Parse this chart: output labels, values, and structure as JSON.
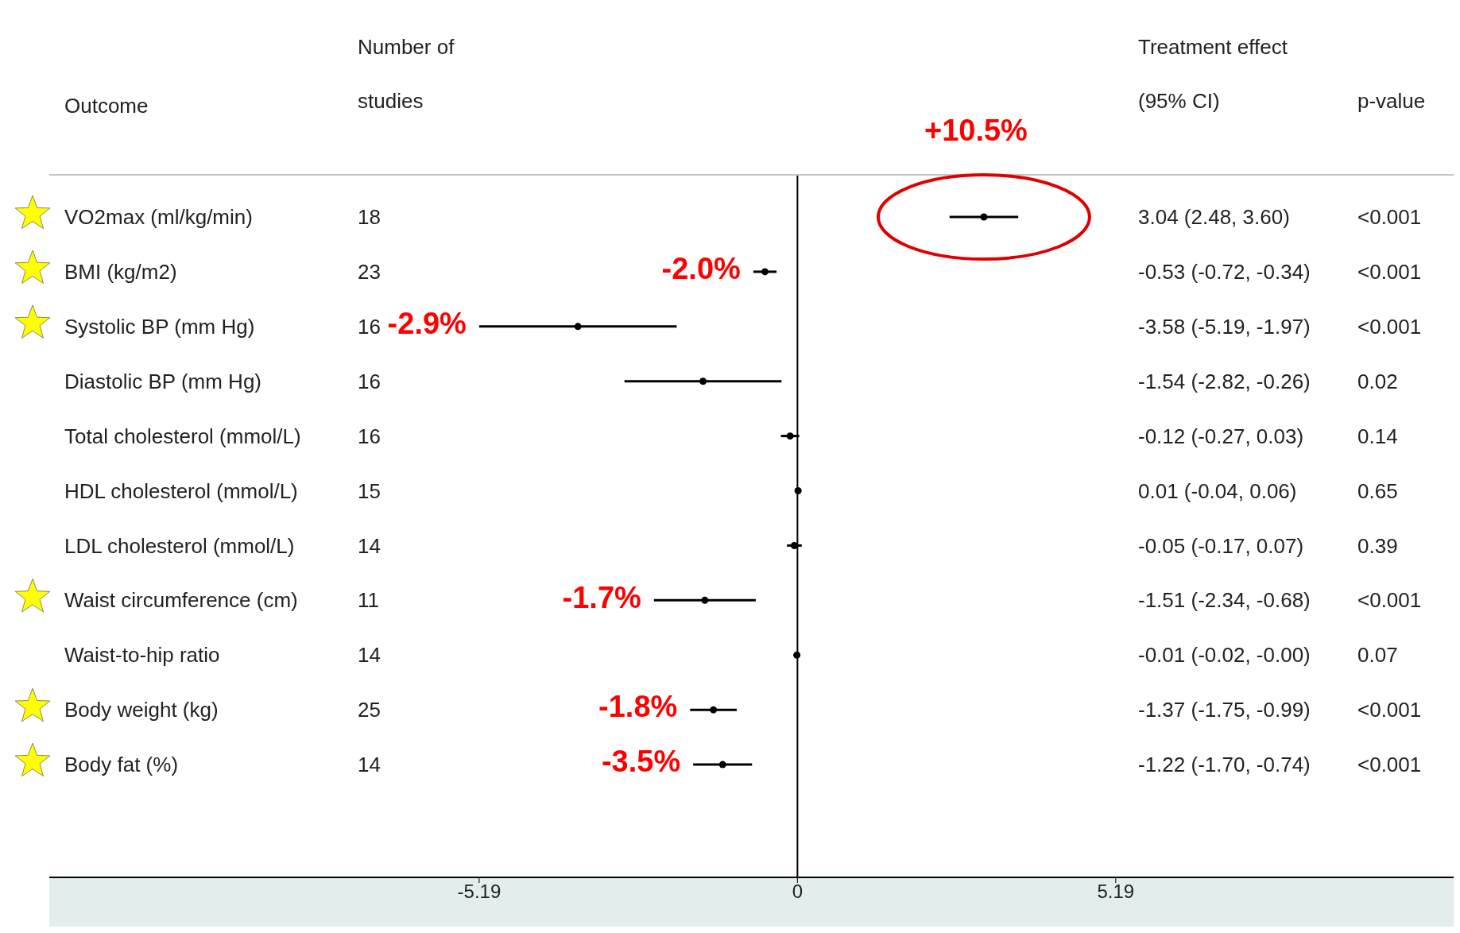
{
  "chart_data": {
    "type": "scatter",
    "orientation": "horizontal",
    "ylabel": "Outcome",
    "categories": [
      "VO2max (ml/kg/min)",
      "BMI (kg/m2)",
      "Systolic BP (mm Hg)",
      "Diastolic BP (mm Hg)",
      "Total cholesterol (mmol/L)",
      "HDL cholesterol (mmol/L)",
      "LDL cholesterol (mmol/L)",
      "Waist circumference (cm)",
      "Waist-to-hip ratio",
      "Body weight (kg)",
      "Body fat (%)"
    ],
    "values": [
      3.04,
      -0.53,
      -3.58,
      -1.54,
      -0.12,
      0.01,
      -0.05,
      -1.51,
      -0.01,
      -1.37,
      -1.22
    ],
    "errors": [
      [
        2.48,
        3.6
      ],
      [
        -0.72,
        -0.34
      ],
      [
        -5.19,
        -1.97
      ],
      [
        -2.82,
        -0.26
      ],
      [
        -0.27,
        0.03
      ],
      [
        -0.04,
        0.06
      ],
      [
        -0.17,
        0.07
      ],
      [
        -2.34,
        -0.68
      ],
      [
        -0.02,
        -0.0
      ],
      [
        -1.75,
        -0.99
      ],
      [
        -1.7,
        -0.74
      ]
    ],
    "color": "#000000",
    "marker": "circle",
    "xlim": [
      -12.2,
      10.7
    ],
    "xticks": [
      -5.19,
      0,
      5.19
    ],
    "ref_lines": [
      {
        "axis": "x",
        "value": 0,
        "color": "#000000"
      }
    ],
    "annotations": [
      "Number of studies",
      "Treatment effect (95% CI)",
      "p-value",
      "18",
      "3.04 (2.48, 3.60)",
      "<0.001",
      "23",
      "-0.53 (-0.72, -0.34)",
      "<0.001",
      "16",
      "-3.58 (-5.19, -1.97)",
      "<0.001",
      "16",
      "-1.54 (-2.82, -0.26)",
      "0.02",
      "16",
      "-0.12 (-0.27, 0.03)",
      "0.14",
      "15",
      "0.01 (-0.04, 0.06)",
      "0.65",
      "14",
      "-0.05 (-0.17, 0.07)",
      "0.39",
      "11",
      "-1.51 (-2.34, -0.68)",
      "<0.001",
      "14",
      "-0.01 (-0.02, -0.00)",
      "0.07",
      "25",
      "-1.37 (-1.75, -0.99)",
      "<0.001",
      "14",
      "-1.22 (-1.70, -0.74)",
      "<0.001",
      {
        "text": "+10.5%",
        "x": 3.04,
        "y": "VO2max (ml/kg/min)"
      },
      {
        "text": "-2.0%",
        "x": -0.72,
        "y": "BMI (kg/m2)"
      },
      {
        "text": "-2.9%",
        "x": -5.19,
        "y": "Systolic BP (mm Hg)"
      },
      {
        "text": "-1.7%",
        "x": -2.34,
        "y": "Waist circumference (cm)"
      },
      {
        "text": "-1.8%",
        "x": -1.75,
        "y": "Body weight (kg)"
      },
      {
        "text": "-3.5%",
        "x": -1.7,
        "y": "Body fat (%)"
      }
    ]
  }
}
